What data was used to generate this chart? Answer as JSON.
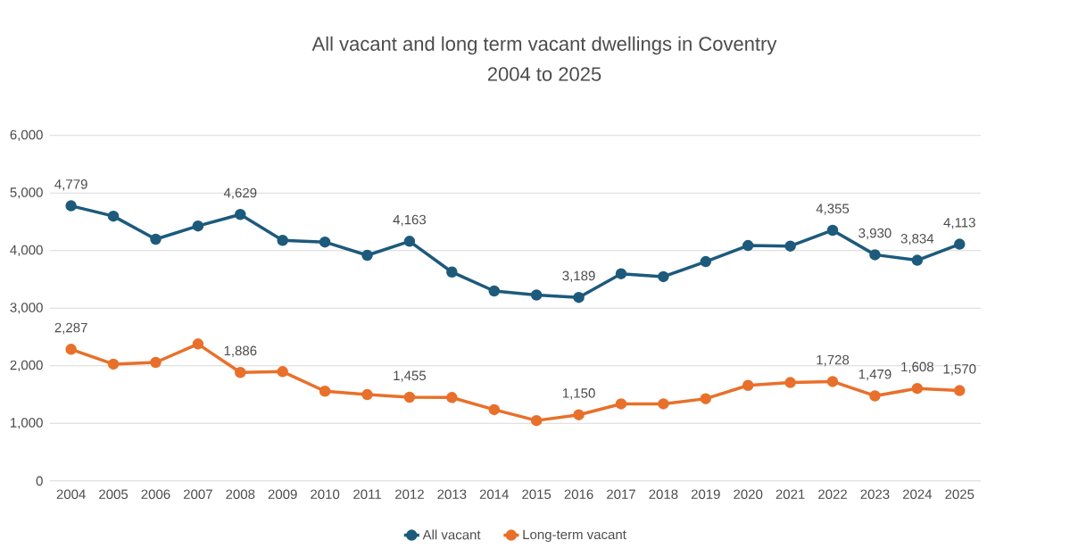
{
  "chart_data": {
    "type": "line",
    "title": "All vacant and long term vacant dwellings in Coventry",
    "subtitle": "2004 to 2025",
    "categories": [
      "2004",
      "2005",
      "2006",
      "2007",
      "2008",
      "2009",
      "2010",
      "2011",
      "2012",
      "2013",
      "2014",
      "2015",
      "2016",
      "2017",
      "2018",
      "2019",
      "2020",
      "2021",
      "2022",
      "2023",
      "2024",
      "2025"
    ],
    "series": [
      {
        "name": "All vacant",
        "color": "#1d5a7c",
        "values": [
          4779,
          4600,
          4200,
          4430,
          4629,
          4180,
          4150,
          3920,
          4163,
          3630,
          3300,
          3230,
          3189,
          3600,
          3550,
          3810,
          4090,
          4080,
          4355,
          3930,
          3834,
          4113
        ],
        "value_labels": [
          "4,779",
          null,
          null,
          null,
          "4,629",
          null,
          null,
          null,
          "4,163",
          null,
          null,
          null,
          "3,189",
          null,
          null,
          null,
          null,
          null,
          "4,355",
          "3,930",
          "3,834",
          "4,113"
        ]
      },
      {
        "name": "Long-term vacant",
        "color": "#e8702a",
        "values": [
          2287,
          2030,
          2060,
          2380,
          1886,
          1900,
          1560,
          1500,
          1455,
          1450,
          1240,
          1050,
          1150,
          1340,
          1340,
          1430,
          1660,
          1710,
          1728,
          1479,
          1608,
          1570
        ],
        "value_labels": [
          "2,287",
          null,
          null,
          null,
          "1,886",
          null,
          null,
          null,
          "1,455",
          null,
          null,
          null,
          "1,150",
          null,
          null,
          null,
          null,
          null,
          "1,728",
          "1,479",
          "1,608",
          "1,570"
        ]
      }
    ],
    "ylim": [
      0,
      6000
    ],
    "yticks": [
      0,
      {
        "value": 1000,
        "label": "1,000"
      },
      {
        "value": 2000,
        "label": "2,000"
      },
      {
        "value": 3000,
        "label": "3,000"
      },
      {
        "value": 4000,
        "label": "4,000"
      },
      {
        "value": 5000,
        "label": "5,000"
      },
      {
        "value": 6000,
        "label": "6,000"
      }
    ],
    "grid": "y",
    "legend": "bottom",
    "marker": "circle",
    "line_style": "solid"
  }
}
